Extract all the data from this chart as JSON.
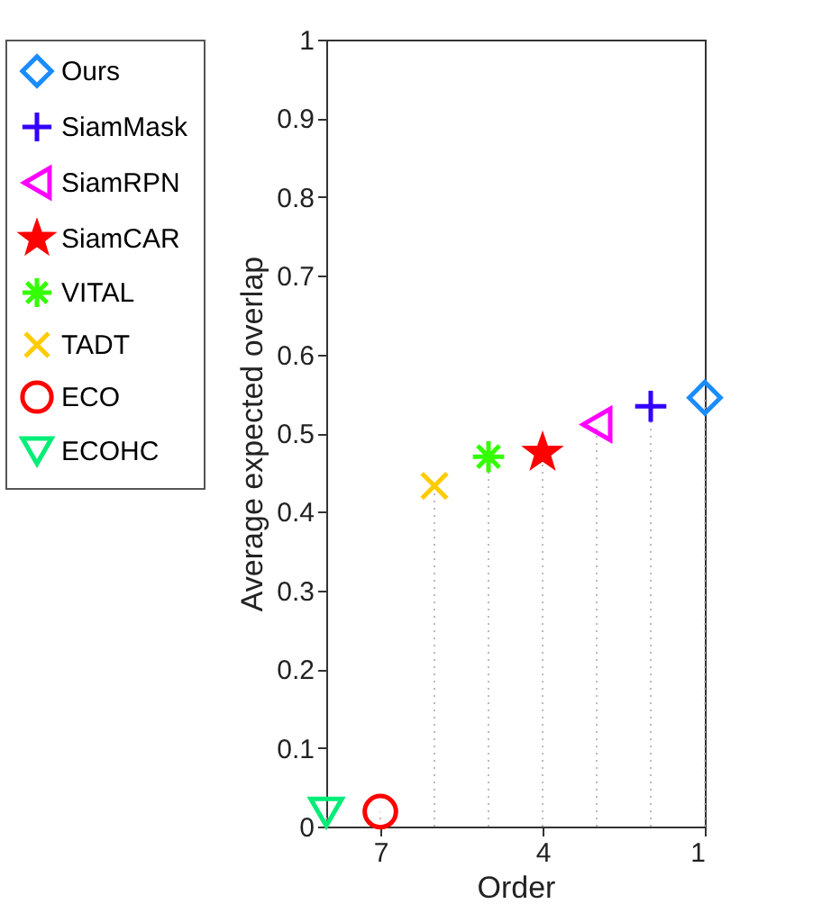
{
  "chart_data": {
    "type": "lollipop",
    "xlabel": "Order",
    "ylabel": "Average expected overlap",
    "xlim": [
      8,
      1
    ],
    "xticks": [
      7,
      4,
      1
    ],
    "ylim": [
      0,
      1
    ],
    "yticks": [
      0,
      0.1,
      0.2,
      0.3,
      0.4,
      0.5,
      0.6,
      0.7,
      0.8,
      0.9,
      1
    ],
    "grid": false,
    "legend": "top left",
    "series": [
      {
        "name": "Ours",
        "color": "#1a8cff",
        "x": [
          1
        ],
        "values": [
          0.545
        ]
      },
      {
        "name": "SiamMask",
        "color": "#3300ff",
        "x": [
          2
        ],
        "values": [
          0.534
        ]
      },
      {
        "name": "SiamRPN",
        "color": "#ff00ff",
        "x": [
          3
        ],
        "values": [
          0.511
        ]
      },
      {
        "name": "SiamCAR",
        "color": "#ff0000",
        "x": [
          4
        ],
        "values": [
          0.475
        ]
      },
      {
        "name": "VITAL",
        "color": "#33ff00",
        "x": [
          5
        ],
        "values": [
          0.47
        ]
      },
      {
        "name": "TADT",
        "color": "#ffcc00",
        "x": [
          6
        ],
        "values": [
          0.433
        ]
      },
      {
        "name": "ECO",
        "color": "#ff0000",
        "x": [
          7
        ],
        "values": [
          0.019
        ]
      },
      {
        "name": "ECOHC",
        "color": "#00ee77",
        "x": [
          8
        ],
        "values": [
          0.018
        ]
      }
    ]
  }
}
